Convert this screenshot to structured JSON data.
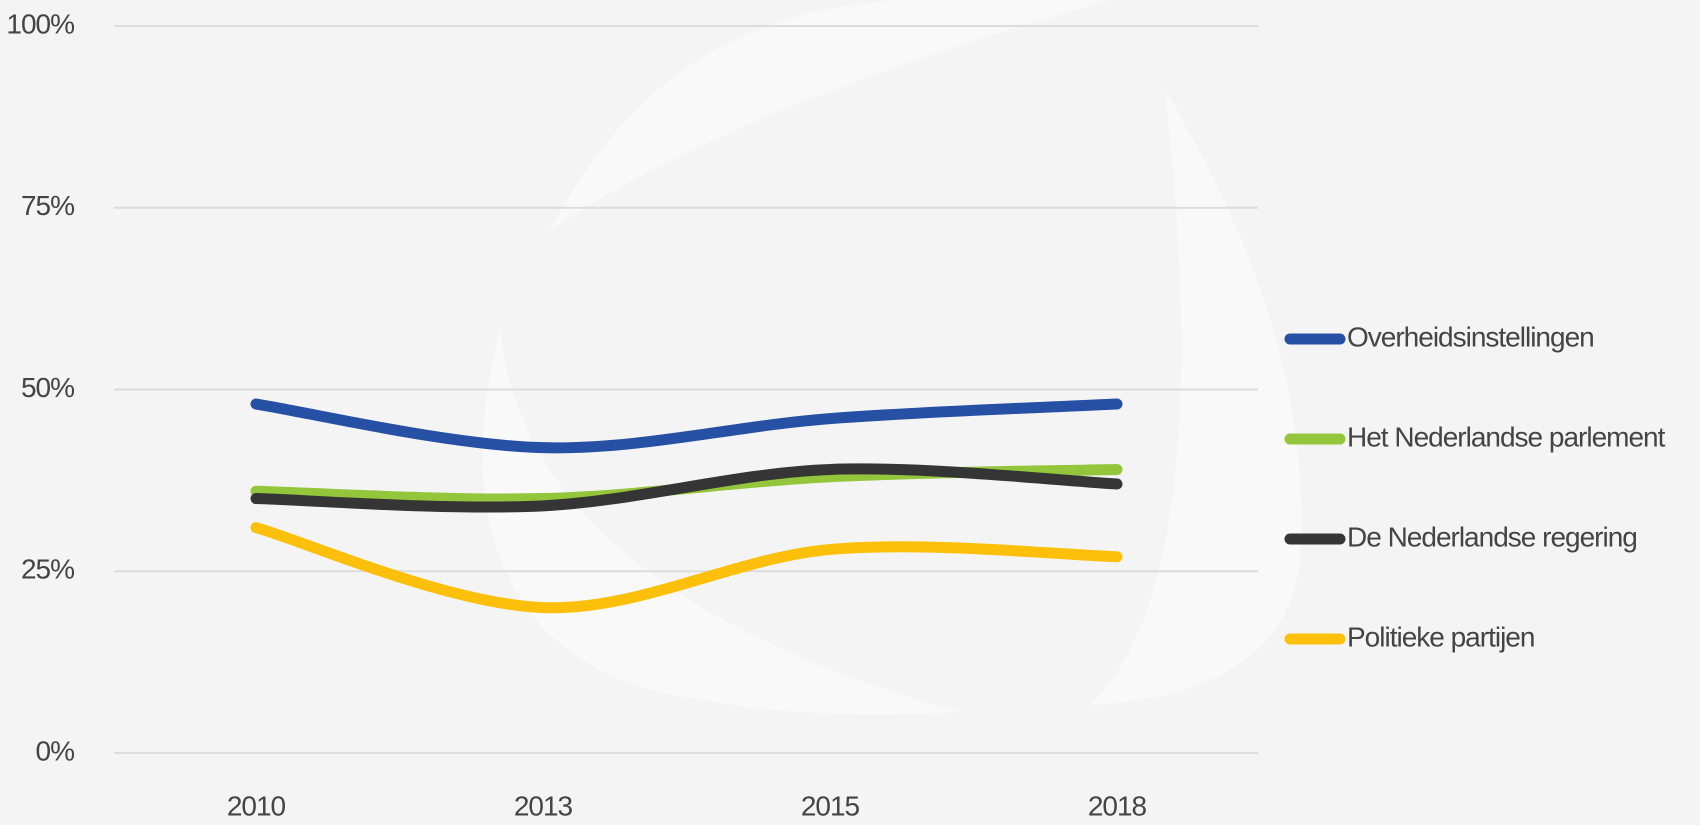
{
  "chart_data": {
    "type": "line",
    "categories": [
      "2010",
      "2013",
      "2015",
      "2018"
    ],
    "series": [
      {
        "name": "Overheidsinstellingen",
        "color": "#2650a3",
        "values": [
          48,
          42,
          46,
          48
        ]
      },
      {
        "name": "Het Nederlandse parlement",
        "color": "#94c63c",
        "values": [
          36,
          35,
          38,
          39
        ]
      },
      {
        "name": "De Nederlandse regering",
        "color": "#353535",
        "values": [
          35,
          34,
          39,
          37
        ]
      },
      {
        "name": "Politieke partijen",
        "color": "#fcc00b",
        "values": [
          31,
          20,
          28,
          27
        ]
      }
    ],
    "ylim": [
      0,
      100
    ],
    "yticks": [
      {
        "value": 0,
        "label": "0%"
      },
      {
        "value": 25,
        "label": "25%"
      },
      {
        "value": 50,
        "label": "50%"
      },
      {
        "value": 75,
        "label": "75%"
      },
      {
        "value": 100,
        "label": "100%"
      }
    ],
    "grid": true,
    "legend": "right",
    "smooth": true
  }
}
